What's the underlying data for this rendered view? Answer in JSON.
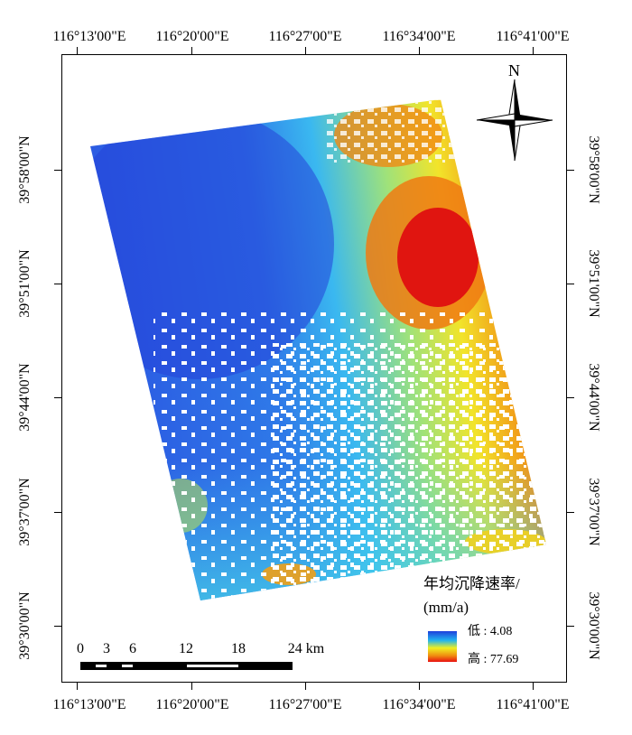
{
  "coordinates": {
    "longitude_labels": [
      "116°13'00\"E",
      "116°20'00\"E",
      "116°27'00\"E",
      "116°34'00\"E",
      "116°41'00\"E"
    ],
    "latitude_labels": [
      "39°58'00\"N",
      "39°51'00\"N",
      "39°44'00\"N",
      "39°37'00\"N",
      "39°30'00\"N"
    ]
  },
  "north_arrow": {
    "label": "N",
    "icon": "north-arrow-icon"
  },
  "legend": {
    "title_line1": "年均沉降速率/",
    "title_line2": "(mm/a)",
    "low_label": "低 : 4.08",
    "high_label": "高 : 77.69",
    "colors": [
      "#1e3fdc",
      "#21b4f0",
      "#f0f020",
      "#f08c10",
      "#e81010"
    ]
  },
  "scale_bar": {
    "labels": [
      "0",
      "3",
      "6",
      "12",
      "18",
      "24 km"
    ]
  }
}
